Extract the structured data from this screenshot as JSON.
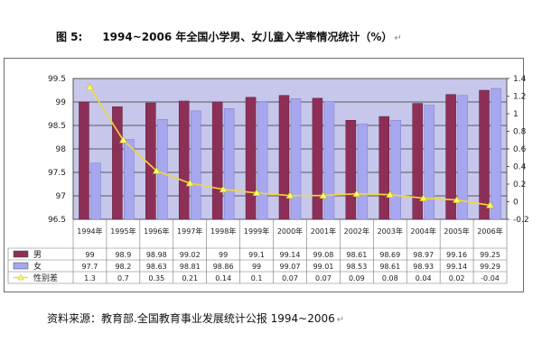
{
  "title": {
    "figure_label": "图 5:",
    "text": "1994~2006 年全国小学男、女儿童入学率情况统计（%）",
    "return_mark": "↵"
  },
  "source": {
    "text": "资料来源：教育部.全国教育事业发展统计公报 1994~2006",
    "return_mark": "↵"
  },
  "colors": {
    "plot_bg": "#c7c7ec",
    "male": "#8e2f57",
    "female": "#a7a7ef",
    "gap": "#ffff66",
    "gap_line": "#f2d63c"
  },
  "chart_data": {
    "type": "bar",
    "categories": [
      "1994年",
      "1995年",
      "1996年",
      "1997年",
      "1998年",
      "1999年",
      "2000年",
      "2001年",
      "2002年",
      "2003年",
      "2004年",
      "2005年",
      "2006年"
    ],
    "series": [
      {
        "name": "男",
        "type": "bar",
        "axis": "left",
        "values": [
          99,
          98.9,
          98.98,
          99.02,
          99,
          99.1,
          99.14,
          99.08,
          98.61,
          98.69,
          98.97,
          99.16,
          99.25
        ]
      },
      {
        "name": "女",
        "type": "bar",
        "axis": "left",
        "values": [
          97.7,
          98.2,
          98.63,
          98.81,
          98.86,
          99,
          99.07,
          99.01,
          98.53,
          98.61,
          98.93,
          99.14,
          99.29
        ]
      },
      {
        "name": "性别差",
        "type": "line",
        "axis": "right",
        "values": [
          1.3,
          0.7,
          0.35,
          0.21,
          0.14,
          0.1,
          0.07,
          0.07,
          0.09,
          0.08,
          0.04,
          0.02,
          -0.04
        ]
      }
    ],
    "table_values": {
      "male": [
        "99",
        "98.9",
        "98.98",
        "99.02",
        "99",
        "99.1",
        "99.14",
        "99.08",
        "98.61",
        "98.69",
        "98.97",
        "99.16",
        "99.25"
      ],
      "female": [
        "97.7",
        "98.2",
        "98.63",
        "98.81",
        "98.86",
        "99",
        "99.07",
        "99.01",
        "98.53",
        "98.61",
        "98.93",
        "99.14",
        "99.29"
      ],
      "gap": [
        "1.3",
        "0.7",
        "0.35",
        "0.21",
        "0.14",
        "0.1",
        "0.07",
        "0.07",
        "0.09",
        "0.08",
        "0.04",
        "0.02",
        "-0.04"
      ]
    },
    "y_left": {
      "range": [
        96.5,
        99.5
      ],
      "ticks": [
        "99.5",
        "99",
        "98.5",
        "98",
        "97.5",
        "97",
        "96.5"
      ]
    },
    "y_right": {
      "range": [
        -0.2,
        1.4
      ],
      "ticks": [
        "1.4",
        "1.2",
        "1",
        "0.8",
        "0.6",
        "0.4",
        "0.2",
        "0",
        "-0.2"
      ]
    },
    "grid": true,
    "legend": "in-table"
  }
}
